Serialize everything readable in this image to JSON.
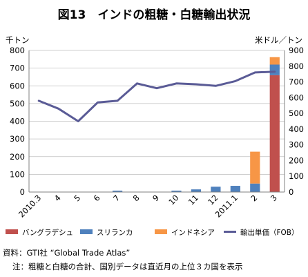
{
  "chart_data": {
    "type": "bar+line",
    "title": "図13　インドの粗糖・白糖輸出状況",
    "left_axis_unit": "千トン",
    "right_axis_unit": "米ドル／トン",
    "left_ylim": [
      0,
      800
    ],
    "right_ylim": [
      0,
      900
    ],
    "left_ticks": [
      "0",
      "100",
      "200",
      "300",
      "400",
      "500",
      "600",
      "700",
      "800"
    ],
    "right_ticks": [
      "0",
      "100",
      "200",
      "300",
      "400",
      "500",
      "600",
      "700",
      "800",
      "900"
    ],
    "categories": [
      "2010.3",
      "4",
      "5",
      "6",
      "7",
      "8",
      "9",
      "10",
      "11",
      "12",
      "2011.1",
      "2",
      "3"
    ],
    "stacked_series": [
      {
        "name": "バングラデシュ",
        "color": "#c0504d",
        "values": [
          0,
          0,
          0,
          0,
          0,
          0,
          0,
          0,
          0,
          0,
          0,
          0,
          660
        ]
      },
      {
        "name": "スリランカ",
        "color": "#4f81bd",
        "values": [
          0,
          0,
          0,
          0,
          8,
          0,
          0,
          8,
          15,
          30,
          35,
          48,
          60
        ]
      },
      {
        "name": "インドネシア",
        "color": "#f79646",
        "values": [
          0,
          0,
          0,
          0,
          0,
          0,
          0,
          0,
          0,
          0,
          0,
          180,
          42
        ]
      }
    ],
    "line_series": {
      "name": "輸出単価（FOB）",
      "color": "#5a5b96",
      "axis": "right",
      "values": [
        580,
        530,
        450,
        570,
        580,
        690,
        660,
        690,
        685,
        675,
        705,
        760,
        765
      ]
    },
    "grid": true,
    "legend_position": "bottom"
  },
  "notes": {
    "source": "資料：GTI社 “Global Trade Atlas”",
    "note": "注：粗糖と白糖の合計、国別データは直近月の上位３カ国を表示"
  }
}
